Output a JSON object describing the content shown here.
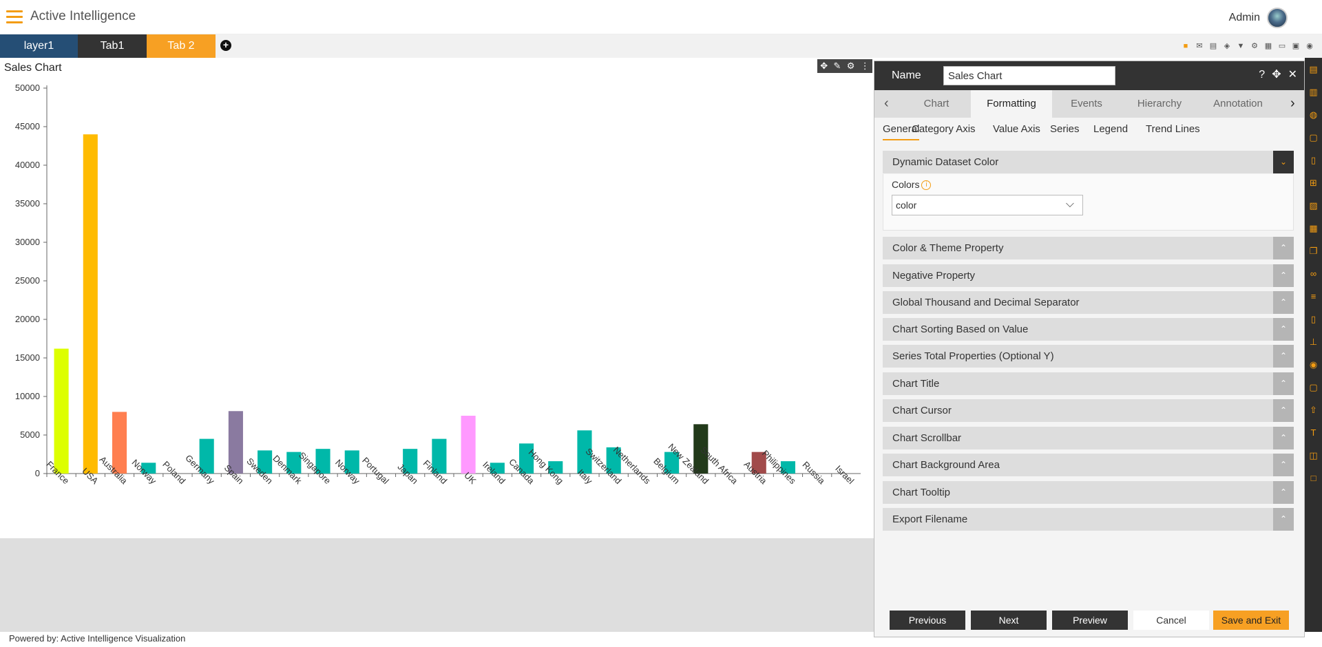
{
  "header": {
    "app_title": "Active Intelligence",
    "user": "Admin"
  },
  "tabs": [
    {
      "label": "layer1"
    },
    {
      "label": "Tab1"
    },
    {
      "label": "Tab 2"
    }
  ],
  "add_tab_symbol": "+",
  "toolbar_icons": [
    "save-icon",
    "mail-icon",
    "comment-icon",
    "eraser-icon",
    "filter-icon",
    "gear-icon",
    "table-icon",
    "layout-icon",
    "monitor-icon",
    "eye-icon"
  ],
  "widget": {
    "title": "Sales Chart"
  },
  "chart_data": {
    "type": "bar",
    "title": "Sales Chart",
    "categories": [
      "France",
      "USA",
      "Australia",
      "Norway",
      "Poland",
      "Germany",
      "Spain",
      "Sweden",
      "Denmark",
      "Singapore",
      "Norway",
      "Portugal",
      "Japan",
      "Finland",
      "UK",
      "Ireland",
      "Canada",
      "Hong Kong",
      "Italy",
      "Switzerland",
      "Netherlands",
      "Belgium",
      "New Zealand",
      "South Africa",
      "Austria",
      "Philippines",
      "Russia",
      "Israel"
    ],
    "values": [
      16200,
      44000,
      8000,
      1400,
      0,
      4500,
      8100,
      3000,
      2800,
      3200,
      3000,
      0,
      3200,
      4500,
      7500,
      1400,
      3900,
      1600,
      5600,
      3400,
      0,
      2800,
      6400,
      0,
      2800,
      1600,
      0,
      0
    ],
    "colors": [
      "#ddff00",
      "#ffbb00",
      "#ff7f50",
      "#00b8a9",
      "#00b8a9",
      "#00b8a9",
      "#8a7aa0",
      "#00b8a9",
      "#00b8a9",
      "#00b8a9",
      "#00b8a9",
      "#00b8a9",
      "#00b8a9",
      "#00b8a9",
      "#ff99ff",
      "#00b8a9",
      "#00b8a9",
      "#00b8a9",
      "#00b8a9",
      "#00b8a9",
      "#00b8a9",
      "#00b8a9",
      "#223a1a",
      "#00b8a9",
      "#a14a4a",
      "#00b8a9",
      "#00b8a9",
      "#00b8a9"
    ],
    "ylim": [
      0,
      50000
    ],
    "yticks": [
      0,
      5000,
      10000,
      15000,
      20000,
      25000,
      30000,
      35000,
      40000,
      45000,
      50000
    ],
    "grid": false,
    "legend": "none"
  },
  "panel": {
    "name_label": "Name",
    "name_value": "Sales Chart",
    "tabs": [
      "Chart",
      "Formatting",
      "Events",
      "Hierarchy",
      "Annotation"
    ],
    "active_tab": "Formatting",
    "subtabs": [
      "General",
      "Category Axis",
      "Value Axis",
      "Series",
      "Legend",
      "Trend Lines"
    ],
    "active_subtab": "General",
    "open_section": {
      "title": "Dynamic Dataset Color",
      "colors_label": "Colors",
      "color_value": "color"
    },
    "sections": [
      "Color & Theme Property",
      "Negative Property",
      "Global Thousand and Decimal Separator",
      "Chart Sorting Based on Value",
      "Series Total Properties (Optional Y)",
      "Chart Title",
      "Chart Cursor",
      "Chart Scrollbar",
      "Chart Background Area",
      "Chart Tooltip",
      "Export Filename"
    ],
    "buttons": {
      "previous": "Previous",
      "next": "Next",
      "preview": "Preview",
      "cancel": "Cancel",
      "save_exit": "Save and Exit"
    }
  },
  "footer": "Powered by: Active Intelligence Visualization",
  "colors": {
    "accent": "#f7a023",
    "dark": "#333333",
    "navy": "#254e75"
  }
}
